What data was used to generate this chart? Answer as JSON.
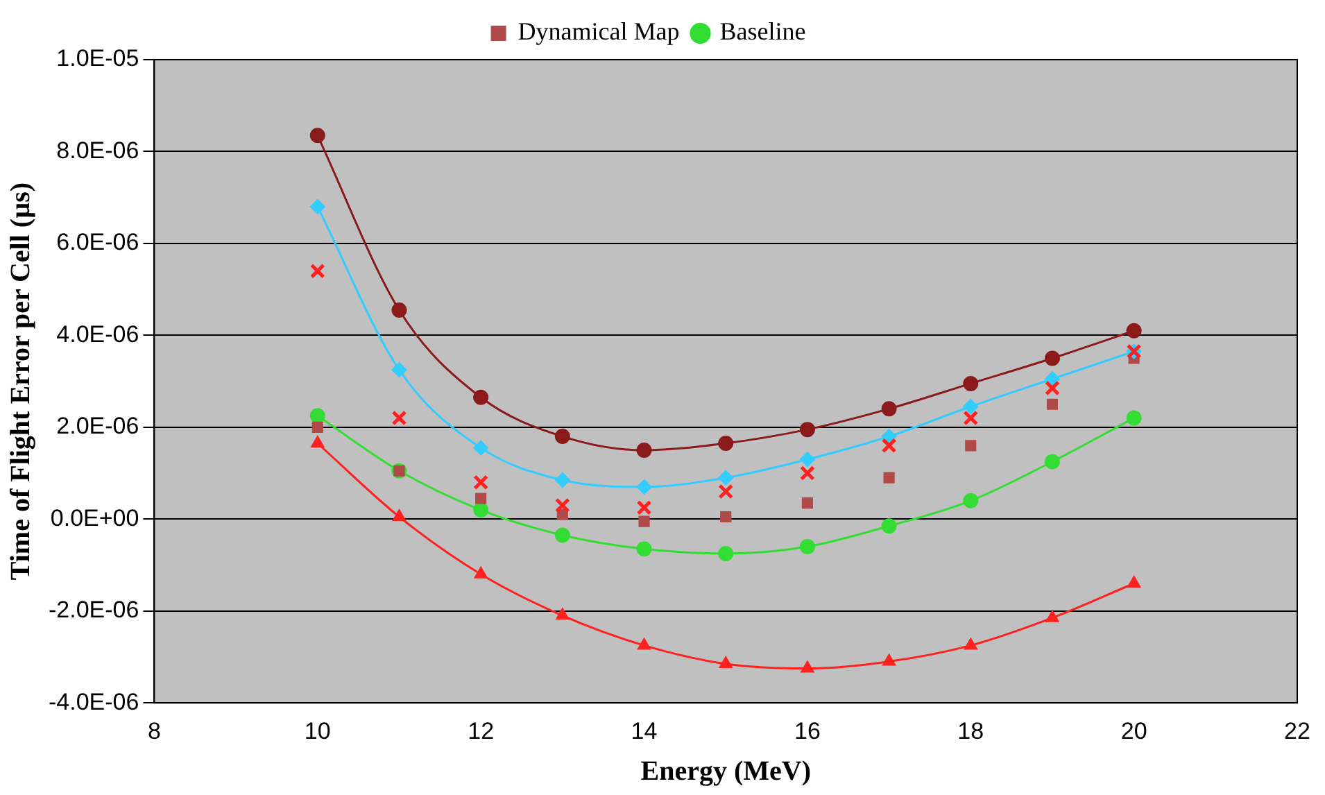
{
  "chart_data": {
    "type": "line",
    "xlabel": "Energy (MeV)",
    "ylabel": "Time of Flight Error per Cell (µs)",
    "x": [
      10,
      11,
      12,
      13,
      14,
      15,
      16,
      17,
      18,
      19,
      20
    ],
    "xlim": [
      8,
      22
    ],
    "xticks": [
      8,
      10,
      12,
      14,
      16,
      18,
      20,
      22
    ],
    "ylim": [
      -4e-06,
      1e-05
    ],
    "yticks": [
      {
        "value": -4e-06,
        "label": "-4.0E-06"
      },
      {
        "value": -2e-06,
        "label": "-2.0E-06"
      },
      {
        "value": 0,
        "label": "0.0E+00"
      },
      {
        "value": 2e-06,
        "label": "2.0E-06"
      },
      {
        "value": 4e-06,
        "label": "4.0E-06"
      },
      {
        "value": 6e-06,
        "label": "6.0E-06"
      },
      {
        "value": 8e-06,
        "label": "8.0E-06"
      },
      {
        "value": 1e-05,
        "label": "1.0E-05"
      }
    ],
    "grid": "y",
    "legend": "top",
    "series": [
      {
        "type": "scatter",
        "marker": "cross",
        "color": "#ff2020",
        "values": [
          5.4e-06,
          2.2e-06,
          8e-07,
          3e-07,
          2.5e-07,
          6e-07,
          1e-06,
          1.6e-06,
          2.2e-06,
          2.85e-06,
          3.65e-06
        ]
      },
      {
        "marker": "diamond",
        "color": "#33ccff",
        "values": [
          6.8e-06,
          3.25e-06,
          1.55e-06,
          8.5e-07,
          7e-07,
          9e-07,
          1.3e-06,
          1.8e-06,
          2.45e-06,
          3.05e-06,
          3.65e-06
        ]
      },
      {
        "type": "scatter",
        "name": "Dynamical Map",
        "marker": "square",
        "color": "#b04a48",
        "values": [
          2e-06,
          1.05e-06,
          4.5e-07,
          1e-07,
          -5e-08,
          5e-08,
          3.5e-07,
          9e-07,
          1.6e-06,
          2.5e-06,
          3.5e-06
        ]
      },
      {
        "marker": "triangle",
        "color": "#ff2020",
        "values": [
          1.65e-06,
          5e-08,
          -1.2e-06,
          -2.1e-06,
          -2.75e-06,
          -3.15e-06,
          -3.25e-06,
          -3.1e-06,
          -2.75e-06,
          -2.15e-06,
          -1.4e-06
        ]
      },
      {
        "name": "Baseline",
        "marker": "circle",
        "color": "#33dd33",
        "values": [
          2.25e-06,
          1.05e-06,
          2e-07,
          -3.5e-07,
          -6.5e-07,
          -7.5e-07,
          -6e-07,
          -1.5e-07,
          4e-07,
          1.25e-06,
          2.2e-06
        ]
      },
      {
        "marker": "circle",
        "color": "#8b1a1a",
        "values": [
          8.35e-06,
          4.55e-06,
          2.65e-06,
          1.8e-06,
          1.5e-06,
          1.65e-06,
          1.95e-06,
          2.4e-06,
          2.95e-06,
          3.5e-06,
          4.1e-06
        ]
      }
    ]
  }
}
